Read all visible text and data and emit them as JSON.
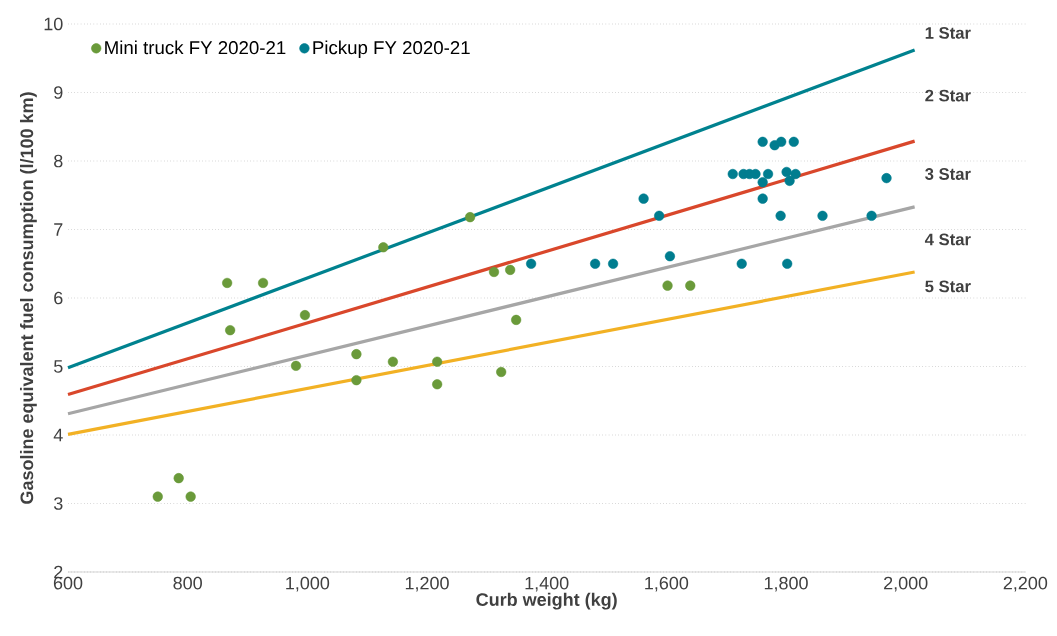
{
  "chart_data": {
    "type": "scatter",
    "xlabel": "Curb weight (kg)",
    "ylabel": "Gasoline equivalent fuel consumption (l/100 km)",
    "xlim": [
      600,
      2200
    ],
    "ylim": [
      2,
      10
    ],
    "xticks": [
      600,
      800,
      {
        "value": 1000,
        "label": "1,000"
      },
      {
        "value": 1200,
        "label": "1,200"
      },
      {
        "value": 1400,
        "label": "1,400"
      },
      {
        "value": 1600,
        "label": "1,600"
      },
      {
        "value": 1800,
        "label": "1,800"
      },
      {
        "value": 2000,
        "label": "2,000"
      },
      {
        "value": 2200,
        "label": "2,200"
      }
    ],
    "yticks": [
      2,
      3,
      4,
      5,
      6,
      7,
      8,
      9,
      10
    ],
    "grid": "y",
    "legend": "top left",
    "annotations": [
      "1 Star",
      "2 Star",
      "3 Star",
      "4 Star",
      "5 Star"
    ],
    "series": [
      {
        "name": "Mini truck FY 2020-21",
        "color": "#6a9a3a",
        "type": "scatter",
        "marker": "circle",
        "x": [
          750,
          785,
          805,
          866,
          871,
          926,
          981,
          996,
          1082,
          1082,
          1143,
          1217,
          1217,
          1127,
          1272,
          1312,
          1339,
          1349,
          1324,
          1602,
          1640
        ],
        "values": [
          3.1,
          3.37,
          3.1,
          6.22,
          5.53,
          6.22,
          5.01,
          5.75,
          5.18,
          4.8,
          5.07,
          5.07,
          4.74,
          6.74,
          7.18,
          6.38,
          6.41,
          5.68,
          4.92,
          6.18,
          6.18
        ]
      },
      {
        "name": "Pickup FY 2020-21",
        "color": "#007d8f",
        "type": "scatter",
        "marker": "circle",
        "x": [
          1374,
          1481,
          1511,
          1562,
          1588,
          1606,
          1726,
          1802,
          1711,
          1729,
          1739,
          1749,
          1770,
          1761,
          1761,
          1761,
          1781,
          1792,
          1813,
          1801,
          1816,
          1806,
          1791,
          1861,
          1943,
          1968
        ],
        "values": [
          6.5,
          6.5,
          6.5,
          7.45,
          7.2,
          6.61,
          6.5,
          6.5,
          7.81,
          7.81,
          7.81,
          7.81,
          7.81,
          7.69,
          7.45,
          8.28,
          8.23,
          8.28,
          8.28,
          7.84,
          7.81,
          7.71,
          7.2,
          7.2,
          7.2,
          7.75
        ]
      },
      {
        "color": "#00828f",
        "type": "line",
        "marker": "none",
        "x": [
          600,
          2015
        ],
        "values": [
          4.98,
          9.62
        ]
      },
      {
        "color": "#d9472b",
        "type": "line",
        "marker": "none",
        "x": [
          600,
          2015
        ],
        "values": [
          4.59,
          8.29
        ]
      },
      {
        "color": "#a6a6a6",
        "type": "line",
        "marker": "none",
        "x": [
          600,
          2015
        ],
        "values": [
          4.31,
          7.33
        ]
      },
      {
        "color": "#f2b124",
        "type": "line",
        "marker": "none",
        "x": [
          600,
          2015
        ],
        "values": [
          4.01,
          6.38
        ]
      }
    ]
  }
}
